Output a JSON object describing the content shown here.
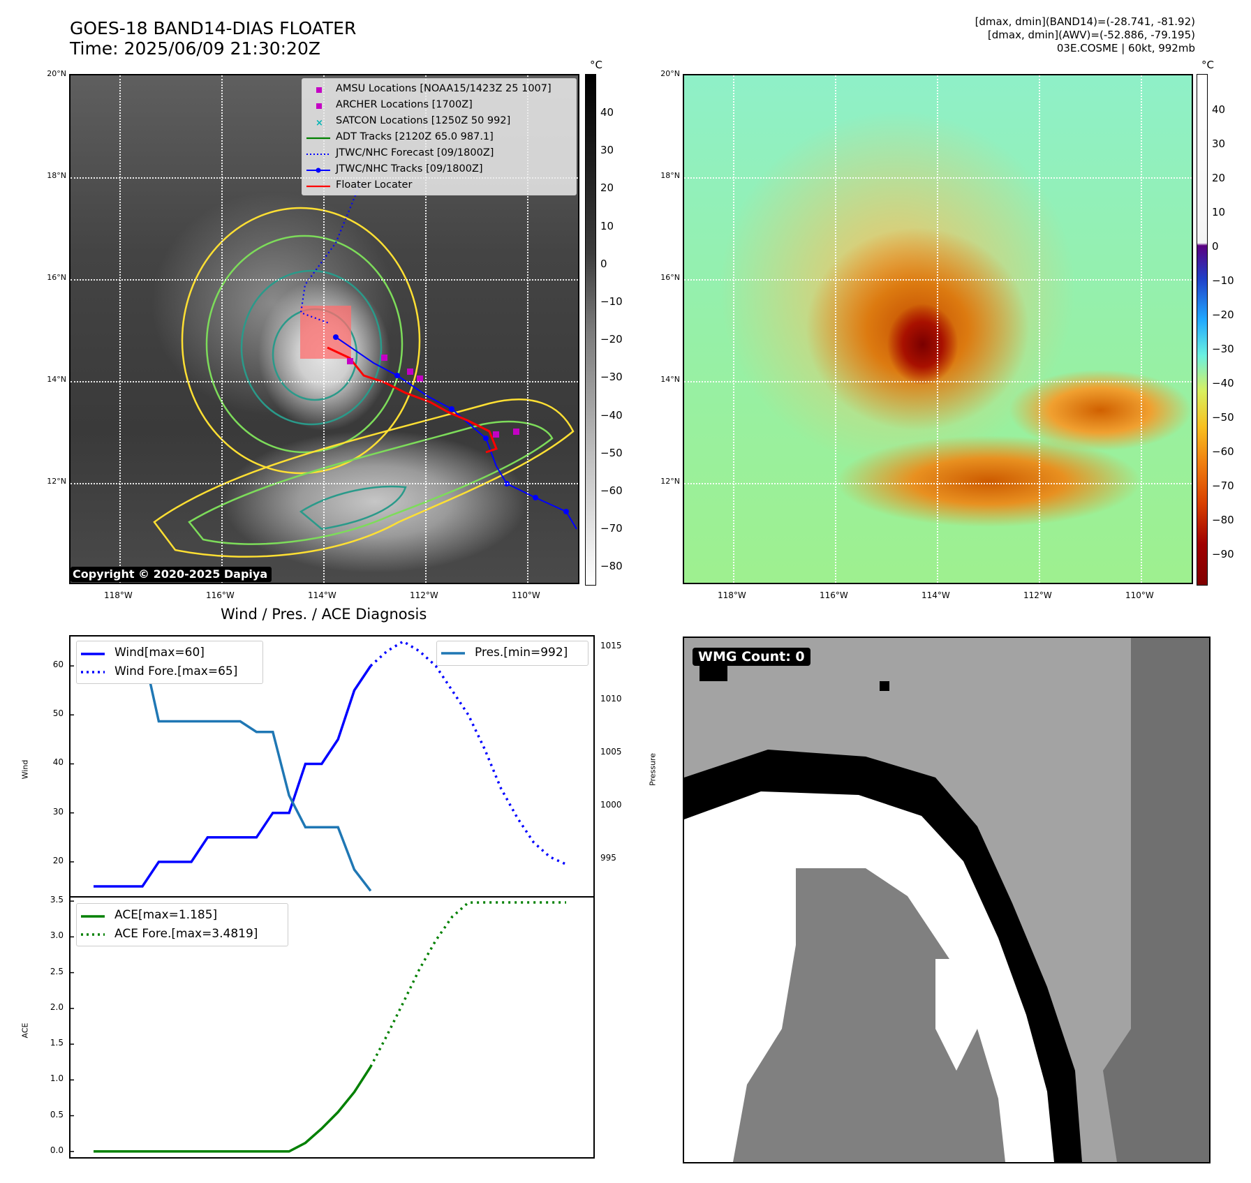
{
  "header": {
    "title_line1": "GOES-18 BAND14-DIAS FLOATER",
    "title_line2": "Time: 2025/06/09 21:30:20Z",
    "info_line1": "[dmax, dmin](BAND14)=(-28.741, -81.92)",
    "info_line2": "[dmax, dmin](AWV)=(-52.886, -79.195)",
    "info_line3": "03E.COSME | 60kt, 992mb"
  },
  "map": {
    "lat_labels": [
      "20°N",
      "18°N",
      "16°N",
      "14°N",
      "12°N"
    ],
    "lon_labels": [
      "118°W",
      "116°W",
      "114°W",
      "112°W",
      "110°W"
    ],
    "ir_colorbar": {
      "unit": "°C",
      "ticks": [
        "40",
        "30",
        "20",
        "10",
        "0",
        "−10",
        "−20",
        "−30",
        "−40",
        "−50",
        "−60",
        "−70",
        "−80"
      ]
    },
    "awv_colorbar": {
      "unit": "°C",
      "ticks": [
        "40",
        "30",
        "20",
        "10",
        "0",
        "−10",
        "−20",
        "−30",
        "−40",
        "−50",
        "−60",
        "−70",
        "−80",
        "−90"
      ]
    },
    "legend": [
      {
        "label": "AMSU Locations [NOAA15/1423Z 25 1007]",
        "color": "#c400c4",
        "style": "square"
      },
      {
        "label": "ARCHER Locations [1700Z]",
        "color": "#c400c4",
        "style": "square"
      },
      {
        "label": "SATCON Locations [1250Z 50 992]",
        "color": "#00b4b4",
        "style": "x"
      },
      {
        "label": "ADT Tracks [2120Z 65.0 987.1]",
        "color": "#008000",
        "style": "line"
      },
      {
        "label": "JTWC/NHC Forecast [09/1800Z]",
        "color": "#0000ff",
        "style": "dotted"
      },
      {
        "label": "JTWC/NHC Tracks [09/1800Z]",
        "color": "#0000ff",
        "style": "line-dot"
      },
      {
        "label": "Floater Locater",
        "color": "#ff0000",
        "style": "line"
      }
    ],
    "copyright": "Copyright © 2020-2025 Dapiya"
  },
  "diagnosis": {
    "title": "Wind / Pres. / ACE Diagnosis",
    "wind_ylabel": "Wind",
    "pres_ylabel": "Pressure",
    "ace_ylabel": "ACE",
    "wind_legend": [
      "Wind[max=60]",
      "Wind Fore.[max=65]"
    ],
    "pres_legend": "Pres.[min=992]",
    "ace_legend": [
      "ACE[max=1.185]",
      "ACE Fore.[max=3.4819]"
    ]
  },
  "chart_data": [
    {
      "type": "line",
      "title": "Wind / Pres. / ACE Diagnosis",
      "ylabel": "Wind",
      "ylim": [
        13,
        66
      ],
      "yticks": [
        20,
        30,
        40,
        50,
        60
      ],
      "series": [
        {
          "name": "Wind[max=60]",
          "color": "#0000ff",
          "style": "solid",
          "x": [
            0,
            1,
            2,
            3,
            4,
            5,
            6,
            7,
            8,
            9,
            10,
            11,
            12,
            13,
            14,
            15,
            16,
            17
          ],
          "values": [
            15,
            15,
            15,
            15,
            20,
            20,
            20,
            25,
            25,
            25,
            25,
            30,
            30,
            40,
            40,
            45,
            55,
            60
          ]
        },
        {
          "name": "Wind Fore.[max=65]",
          "color": "#0000ff",
          "style": "dotted",
          "x": [
            17,
            18,
            19,
            20,
            21,
            22,
            23,
            24,
            25,
            26,
            27,
            28,
            29
          ],
          "values": [
            60,
            63,
            65,
            63,
            60,
            55,
            50,
            43,
            35,
            29,
            24,
            21,
            19.5
          ]
        },
        {
          "name": "Pres.[min=992]",
          "color": "#1f77b4",
          "style": "solid",
          "axis": "right",
          "x": [
            0,
            1,
            2,
            3,
            4,
            5,
            6,
            7,
            8,
            9,
            10,
            11,
            12,
            13,
            14,
            15,
            16,
            17
          ],
          "values": [
            1015,
            1015,
            1015,
            1015,
            1008,
            1008,
            1008,
            1008,
            1008,
            1008,
            1007,
            1007,
            1001,
            998,
            998,
            998,
            994,
            992
          ]
        }
      ],
      "y2lim": [
        991.5,
        1016
      ],
      "y2ticks": [
        995,
        1000,
        1005,
        1010,
        1015
      ]
    },
    {
      "type": "line",
      "ylabel": "ACE",
      "ylim": [
        -0.08,
        3.55
      ],
      "yticks": [
        0.0,
        0.5,
        1.0,
        1.5,
        2.0,
        2.5,
        3.0,
        3.5
      ],
      "series": [
        {
          "name": "ACE[max=1.185]",
          "color": "#008000",
          "style": "solid",
          "x": [
            0,
            1,
            2,
            3,
            4,
            5,
            6,
            7,
            8,
            9,
            10,
            11,
            12,
            13,
            14,
            15,
            16,
            17
          ],
          "values": [
            0,
            0,
            0,
            0,
            0,
            0,
            0,
            0,
            0,
            0,
            0,
            0,
            0,
            0.12,
            0.32,
            0.55,
            0.83,
            1.185
          ]
        },
        {
          "name": "ACE Fore.[max=3.4819]",
          "color": "#008000",
          "style": "dotted",
          "x": [
            17,
            18,
            19,
            20,
            21,
            22,
            23,
            24,
            25,
            26,
            27,
            28,
            29
          ],
          "values": [
            1.185,
            1.62,
            2.08,
            2.55,
            2.95,
            3.28,
            3.48,
            3.4819,
            3.4819,
            3.4819,
            3.4819,
            3.4819,
            3.4819
          ]
        }
      ]
    }
  ],
  "wmg": {
    "badge": "WMG Count: 0"
  }
}
